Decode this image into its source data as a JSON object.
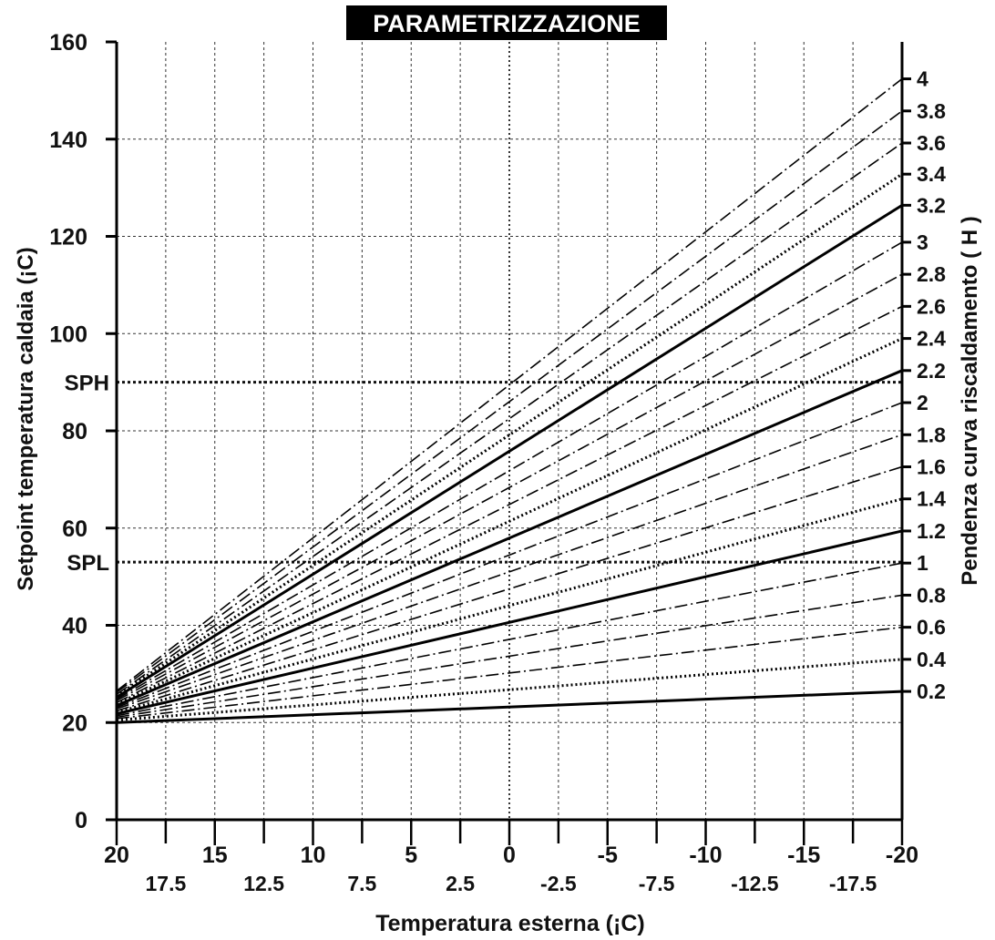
{
  "chart_data": {
    "type": "line",
    "title": "PARAMETRIZZAZIONE",
    "xlabel": "Temperatura esterna (¡C)",
    "ylabel": "Setpoint temperatura caldaia (¡C)",
    "y2label": "Pendenza curva riscaldamento ( H )",
    "xlim": [
      20,
      -20
    ],
    "ylim": [
      0,
      160
    ],
    "x_ticks_major": [
      "20",
      "15",
      "10",
      "5",
      "0",
      "-5",
      "-10",
      "-15",
      "-20"
    ],
    "x_ticks_minor": [
      "17.5",
      "12.5",
      "7.5",
      "2.5",
      "-2.5",
      "-7.5",
      "-12.5",
      "-17.5"
    ],
    "y_ticks": [
      "0",
      "20",
      "40",
      "60",
      "80",
      "100",
      "120",
      "140",
      "160"
    ],
    "grid": true,
    "reference_lines": [
      {
        "label": "SPH",
        "y": 90
      },
      {
        "label": "SPL",
        "y": 53
      }
    ],
    "series": [
      {
        "name": "0.2",
        "style": "solid",
        "x": [
          20,
          -20
        ],
        "y": [
          20,
          26.4
        ]
      },
      {
        "name": "0.4",
        "style": "dotted",
        "x": [
          20,
          -20
        ],
        "y": [
          20.5,
          33.0
        ]
      },
      {
        "name": "0.6",
        "style": "dashdot",
        "x": [
          20,
          -20
        ],
        "y": [
          20.8,
          39.6
        ]
      },
      {
        "name": "0.8",
        "style": "dashdot",
        "x": [
          20,
          -20
        ],
        "y": [
          21.1,
          46.2
        ]
      },
      {
        "name": "1",
        "style": "dashdot",
        "x": [
          20,
          -20
        ],
        "y": [
          21.4,
          52.8
        ]
      },
      {
        "name": "1.2",
        "style": "solid",
        "x": [
          20,
          -20
        ],
        "y": [
          21.8,
          59.4
        ]
      },
      {
        "name": "1.4",
        "style": "dotted",
        "x": [
          20,
          -20
        ],
        "y": [
          22.1,
          66.0
        ]
      },
      {
        "name": "1.6",
        "style": "dashdot",
        "x": [
          20,
          -20
        ],
        "y": [
          22.4,
          72.6
        ]
      },
      {
        "name": "1.8",
        "style": "dashdot",
        "x": [
          20,
          -20
        ],
        "y": [
          22.8,
          79.2
        ]
      },
      {
        "name": "2",
        "style": "dashdot",
        "x": [
          20,
          -20
        ],
        "y": [
          23.1,
          85.8
        ]
      },
      {
        "name": "2.2",
        "style": "solid",
        "x": [
          20,
          -20
        ],
        "y": [
          23.5,
          92.4
        ]
      },
      {
        "name": "2.4",
        "style": "dotted",
        "x": [
          20,
          -20
        ],
        "y": [
          23.8,
          99.0
        ]
      },
      {
        "name": "2.6",
        "style": "dashdot",
        "x": [
          20,
          -20
        ],
        "y": [
          24.1,
          105.6
        ]
      },
      {
        "name": "2.8",
        "style": "dashdot",
        "x": [
          20,
          -20
        ],
        "y": [
          24.5,
          112.2
        ]
      },
      {
        "name": "3",
        "style": "dashdot",
        "x": [
          20,
          -20
        ],
        "y": [
          24.8,
          118.8
        ]
      },
      {
        "name": "3.2",
        "style": "solid",
        "x": [
          20,
          -20
        ],
        "y": [
          25.2,
          126.4
        ]
      },
      {
        "name": "3.4",
        "style": "dotted",
        "x": [
          20,
          -20
        ],
        "y": [
          25.5,
          132.8
        ]
      },
      {
        "name": "3.6",
        "style": "dashdot",
        "x": [
          20,
          -20
        ],
        "y": [
          25.8,
          139.2
        ]
      },
      {
        "name": "3.8",
        "style": "dashdot",
        "x": [
          20,
          -20
        ],
        "y": [
          26.2,
          145.8
        ]
      },
      {
        "name": "4",
        "style": "dashdot",
        "x": [
          20,
          -20
        ],
        "y": [
          26.5,
          152.4
        ]
      }
    ]
  }
}
